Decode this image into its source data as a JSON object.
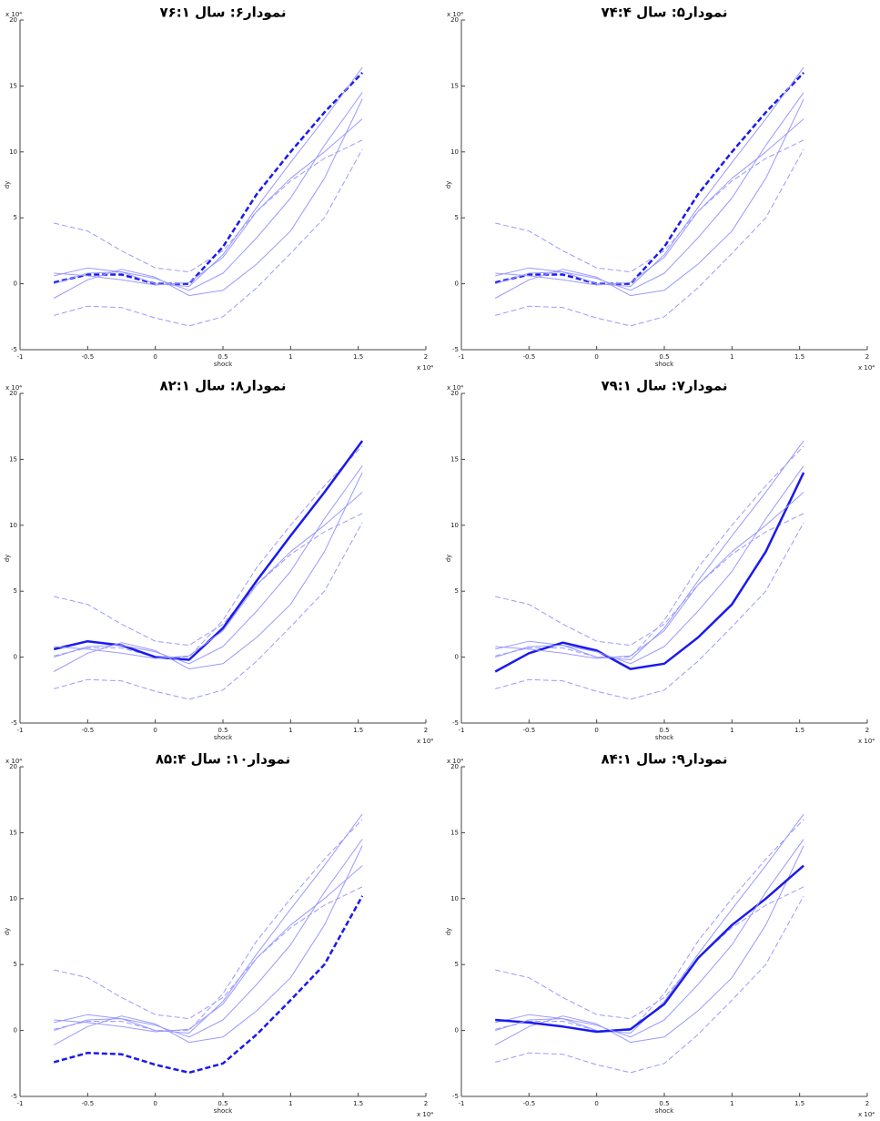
{
  "chart_data": [
    {
      "type": "line",
      "title": "نمودار۶: سال ۷۶:۱",
      "x_label": "shock",
      "y_label": "dy",
      "x_multiplier": "x 10⁴",
      "y_multiplier": "x 10⁴",
      "x": [
        -0.75,
        -0.5,
        -0.25,
        0,
        0.25,
        0.5,
        0.75,
        1,
        1.25,
        1.53
      ],
      "xlim": [
        -1,
        2
      ],
      "xticks": [
        -1,
        -0.5,
        0,
        0.5,
        1,
        1.5,
        2
      ],
      "ylim": [
        -5,
        20
      ],
      "yticks": [
        -5,
        0,
        5,
        10,
        15,
        20
      ],
      "series": [
        {
          "color": "#9a9aff",
          "dash": true,
          "width": 1,
          "values": [
            4.6,
            4.0,
            2.5,
            1.2,
            0.9,
            2.5,
            5.5,
            7.8,
            9.5,
            10.9
          ]
        },
        {
          "color": "#9a9aff",
          "dash": true,
          "width": 1,
          "values": [
            -2.4,
            -1.7,
            -1.8,
            -2.6,
            -3.2,
            -2.5,
            -0.3,
            2.3,
            5.0,
            10.2
          ]
        },
        {
          "color": "#1a1aee",
          "dash": true,
          "width": 2.5,
          "values": [
            0.1,
            0.7,
            0.7,
            0.0,
            0.0,
            2.8,
            6.8,
            10.0,
            13.0,
            16.0
          ]
        },
        {
          "color": "#9a9aff",
          "dash": false,
          "width": 1,
          "values": [
            0.6,
            1.2,
            0.9,
            0.0,
            -0.2,
            2.2,
            5.8,
            9.2,
            12.5,
            16.4
          ]
        },
        {
          "color": "#9a9aff",
          "dash": false,
          "width": 1,
          "values": [
            -1.1,
            0.3,
            1.1,
            0.5,
            -0.9,
            -0.5,
            1.5,
            4.0,
            8.0,
            14.0
          ]
        },
        {
          "color": "#9a9aff",
          "dash": false,
          "width": 1,
          "values": [
            0.8,
            0.6,
            0.3,
            -0.1,
            0.1,
            2.0,
            5.5,
            8.0,
            10.0,
            12.5
          ]
        },
        {
          "color": "#9a9aff",
          "dash": false,
          "width": 1,
          "values": [
            0.0,
            0.8,
            0.9,
            0.4,
            -0.5,
            0.8,
            3.5,
            6.5,
            10.5,
            14.5
          ]
        }
      ]
    },
    {
      "type": "line",
      "title": "نمودار۵: سال ۷۴:۴",
      "x_label": "shock",
      "y_label": "dy",
      "x_multiplier": "x 10⁴",
      "y_multiplier": "x 10⁴",
      "x": [
        -0.75,
        -0.5,
        -0.25,
        0,
        0.25,
        0.5,
        0.75,
        1,
        1.25,
        1.53
      ],
      "xlim": [
        -1,
        2
      ],
      "xticks": [
        -1,
        -0.5,
        0,
        0.5,
        1,
        1.5,
        2
      ],
      "ylim": [
        -5,
        20
      ],
      "yticks": [
        -5,
        0,
        5,
        10,
        15,
        20
      ],
      "series": [
        {
          "color": "#9a9aff",
          "dash": true,
          "width": 1,
          "values": [
            4.6,
            4.0,
            2.5,
            1.2,
            0.9,
            2.5,
            5.5,
            7.8,
            9.5,
            10.9
          ]
        },
        {
          "color": "#9a9aff",
          "dash": true,
          "width": 1,
          "values": [
            -2.4,
            -1.7,
            -1.8,
            -2.6,
            -3.2,
            -2.5,
            -0.3,
            2.3,
            5.0,
            10.2
          ]
        },
        {
          "color": "#1a1aee",
          "dash": true,
          "width": 2.5,
          "values": [
            0.1,
            0.7,
            0.7,
            0.0,
            0.0,
            2.8,
            6.8,
            10.0,
            13.0,
            16.0
          ]
        },
        {
          "color": "#9a9aff",
          "dash": false,
          "width": 1,
          "values": [
            0.6,
            1.2,
            0.9,
            0.0,
            -0.2,
            2.2,
            5.8,
            9.2,
            12.5,
            16.4
          ]
        },
        {
          "color": "#9a9aff",
          "dash": false,
          "width": 1,
          "values": [
            -1.1,
            0.3,
            1.1,
            0.5,
            -0.9,
            -0.5,
            1.5,
            4.0,
            8.0,
            14.0
          ]
        },
        {
          "color": "#9a9aff",
          "dash": false,
          "width": 1,
          "values": [
            0.8,
            0.6,
            0.3,
            -0.1,
            0.1,
            2.0,
            5.5,
            8.0,
            10.0,
            12.5
          ]
        },
        {
          "color": "#9a9aff",
          "dash": false,
          "width": 1,
          "values": [
            0.0,
            0.8,
            0.9,
            0.4,
            -0.5,
            0.8,
            3.5,
            6.5,
            10.5,
            14.5
          ]
        }
      ]
    },
    {
      "type": "line",
      "title": "نمودار۸: سال ۸۲:۱",
      "x_label": "shock",
      "y_label": "dy",
      "x_multiplier": "x 10⁴",
      "y_multiplier": "x 10⁴",
      "x": [
        -0.75,
        -0.5,
        -0.25,
        0,
        0.25,
        0.5,
        0.75,
        1,
        1.25,
        1.53
      ],
      "xlim": [
        -1,
        2
      ],
      "xticks": [
        -1,
        -0.5,
        0,
        0.5,
        1,
        1.5,
        2
      ],
      "ylim": [
        -5,
        20
      ],
      "yticks": [
        -5,
        0,
        5,
        10,
        15,
        20
      ],
      "series": [
        {
          "color": "#9a9aff",
          "dash": true,
          "width": 1,
          "values": [
            4.6,
            4.0,
            2.5,
            1.2,
            0.9,
            2.5,
            5.5,
            7.8,
            9.5,
            10.9
          ]
        },
        {
          "color": "#9a9aff",
          "dash": true,
          "width": 1,
          "values": [
            -2.4,
            -1.7,
            -1.8,
            -2.6,
            -3.2,
            -2.5,
            -0.3,
            2.3,
            5.0,
            10.2
          ]
        },
        {
          "color": "#9a9aff",
          "dash": true,
          "width": 1,
          "values": [
            0.1,
            0.7,
            0.7,
            0.0,
            0.0,
            2.8,
            6.8,
            10.0,
            13.0,
            16.0
          ]
        },
        {
          "color": "#1a1aee",
          "dash": false,
          "width": 2.5,
          "values": [
            0.6,
            1.2,
            0.9,
            0.0,
            -0.2,
            2.2,
            5.8,
            9.2,
            12.5,
            16.4
          ]
        },
        {
          "color": "#9a9aff",
          "dash": false,
          "width": 1,
          "values": [
            -1.1,
            0.3,
            1.1,
            0.5,
            -0.9,
            -0.5,
            1.5,
            4.0,
            8.0,
            14.0
          ]
        },
        {
          "color": "#9a9aff",
          "dash": false,
          "width": 1,
          "values": [
            0.8,
            0.6,
            0.3,
            -0.1,
            0.1,
            2.0,
            5.5,
            8.0,
            10.0,
            12.5
          ]
        },
        {
          "color": "#9a9aff",
          "dash": false,
          "width": 1,
          "values": [
            0.0,
            0.8,
            0.9,
            0.4,
            -0.5,
            0.8,
            3.5,
            6.5,
            10.5,
            14.5
          ]
        }
      ]
    },
    {
      "type": "line",
      "title": "نمودار۷: سال ۷۹:۱",
      "x_label": "shock",
      "y_label": "dy",
      "x_multiplier": "x 10⁴",
      "y_multiplier": "x 10⁴",
      "x": [
        -0.75,
        -0.5,
        -0.25,
        0,
        0.25,
        0.5,
        0.75,
        1,
        1.25,
        1.53
      ],
      "xlim": [
        -1,
        2
      ],
      "xticks": [
        -1,
        -0.5,
        0,
        0.5,
        1,
        1.5,
        2
      ],
      "ylim": [
        -5,
        20
      ],
      "yticks": [
        -5,
        0,
        5,
        10,
        15,
        20
      ],
      "series": [
        {
          "color": "#9a9aff",
          "dash": true,
          "width": 1,
          "values": [
            4.6,
            4.0,
            2.5,
            1.2,
            0.9,
            2.5,
            5.5,
            7.8,
            9.5,
            10.9
          ]
        },
        {
          "color": "#9a9aff",
          "dash": true,
          "width": 1,
          "values": [
            -2.4,
            -1.7,
            -1.8,
            -2.6,
            -3.2,
            -2.5,
            -0.3,
            2.3,
            5.0,
            10.2
          ]
        },
        {
          "color": "#9a9aff",
          "dash": true,
          "width": 1,
          "values": [
            0.1,
            0.7,
            0.7,
            0.0,
            0.0,
            2.8,
            6.8,
            10.0,
            13.0,
            16.0
          ]
        },
        {
          "color": "#9a9aff",
          "dash": false,
          "width": 1,
          "values": [
            0.6,
            1.2,
            0.9,
            0.0,
            -0.2,
            2.2,
            5.8,
            9.2,
            12.5,
            16.4
          ]
        },
        {
          "color": "#1a1aee",
          "dash": false,
          "width": 2.5,
          "values": [
            -1.1,
            0.3,
            1.1,
            0.5,
            -0.9,
            -0.5,
            1.5,
            4.0,
            8.0,
            14.0
          ]
        },
        {
          "color": "#9a9aff",
          "dash": false,
          "width": 1,
          "values": [
            0.8,
            0.6,
            0.3,
            -0.1,
            0.1,
            2.0,
            5.5,
            8.0,
            10.0,
            12.5
          ]
        },
        {
          "color": "#9a9aff",
          "dash": false,
          "width": 1,
          "values": [
            0.0,
            0.8,
            0.9,
            0.4,
            -0.5,
            0.8,
            3.5,
            6.5,
            10.5,
            14.5
          ]
        }
      ]
    },
    {
      "type": "line",
      "title": "نمودار۱۰: سال ۸۵:۴",
      "x_label": "shock",
      "y_label": "dy",
      "x_multiplier": "x 10⁴",
      "y_multiplier": "x 10⁴",
      "x": [
        -0.75,
        -0.5,
        -0.25,
        0,
        0.25,
        0.5,
        0.75,
        1,
        1.25,
        1.53
      ],
      "xlim": [
        -1,
        2
      ],
      "xticks": [
        -1,
        -0.5,
        0,
        0.5,
        1,
        1.5,
        2
      ],
      "ylim": [
        -5,
        20
      ],
      "yticks": [
        -5,
        0,
        5,
        10,
        15,
        20
      ],
      "series": [
        {
          "color": "#9a9aff",
          "dash": true,
          "width": 1,
          "values": [
            4.6,
            4.0,
            2.5,
            1.2,
            0.9,
            2.5,
            5.5,
            7.8,
            9.5,
            10.9
          ]
        },
        {
          "color": "#1a1aee",
          "dash": true,
          "width": 2.5,
          "values": [
            -2.4,
            -1.7,
            -1.8,
            -2.6,
            -3.2,
            -2.5,
            -0.3,
            2.3,
            5.0,
            10.2
          ]
        },
        {
          "color": "#9a9aff",
          "dash": true,
          "width": 1,
          "values": [
            0.1,
            0.7,
            0.7,
            0.0,
            0.0,
            2.8,
            6.8,
            10.0,
            13.0,
            16.0
          ]
        },
        {
          "color": "#9a9aff",
          "dash": false,
          "width": 1,
          "values": [
            0.6,
            1.2,
            0.9,
            0.0,
            -0.2,
            2.2,
            5.8,
            9.2,
            12.5,
            16.4
          ]
        },
        {
          "color": "#9a9aff",
          "dash": false,
          "width": 1,
          "values": [
            -1.1,
            0.3,
            1.1,
            0.5,
            -0.9,
            -0.5,
            1.5,
            4.0,
            8.0,
            14.0
          ]
        },
        {
          "color": "#9a9aff",
          "dash": false,
          "width": 1,
          "values": [
            0.8,
            0.6,
            0.3,
            -0.1,
            0.1,
            2.0,
            5.5,
            8.0,
            10.0,
            12.5
          ]
        },
        {
          "color": "#9a9aff",
          "dash": false,
          "width": 1,
          "values": [
            0.0,
            0.8,
            0.9,
            0.4,
            -0.5,
            0.8,
            3.5,
            6.5,
            10.5,
            14.5
          ]
        }
      ]
    },
    {
      "type": "line",
      "title": "نمودار۹: سال ۸۴:۱",
      "x_label": "shock",
      "y_label": "dy",
      "x_multiplier": "x 10⁴",
      "y_multiplier": "x 10⁴",
      "x": [
        -0.75,
        -0.5,
        -0.25,
        0,
        0.25,
        0.5,
        0.75,
        1,
        1.25,
        1.53
      ],
      "xlim": [
        -1,
        2
      ],
      "xticks": [
        -1,
        -0.5,
        0,
        0.5,
        1,
        1.5,
        2
      ],
      "ylim": [
        -5,
        20
      ],
      "yticks": [
        -5,
        0,
        5,
        10,
        15,
        20
      ],
      "series": [
        {
          "color": "#9a9aff",
          "dash": true,
          "width": 1,
          "values": [
            4.6,
            4.0,
            2.5,
            1.2,
            0.9,
            2.5,
            5.5,
            7.8,
            9.5,
            10.9
          ]
        },
        {
          "color": "#9a9aff",
          "dash": true,
          "width": 1,
          "values": [
            -2.4,
            -1.7,
            -1.8,
            -2.6,
            -3.2,
            -2.5,
            -0.3,
            2.3,
            5.0,
            10.2
          ]
        },
        {
          "color": "#9a9aff",
          "dash": true,
          "width": 1,
          "values": [
            0.1,
            0.7,
            0.7,
            0.0,
            0.0,
            2.8,
            6.8,
            10.0,
            13.0,
            16.0
          ]
        },
        {
          "color": "#9a9aff",
          "dash": false,
          "width": 1,
          "values": [
            0.6,
            1.2,
            0.9,
            0.0,
            -0.2,
            2.2,
            5.8,
            9.2,
            12.5,
            16.4
          ]
        },
        {
          "color": "#9a9aff",
          "dash": false,
          "width": 1,
          "values": [
            -1.1,
            0.3,
            1.1,
            0.5,
            -0.9,
            -0.5,
            1.5,
            4.0,
            8.0,
            14.0
          ]
        },
        {
          "color": "#1a1aee",
          "dash": false,
          "width": 2.5,
          "values": [
            0.8,
            0.6,
            0.3,
            -0.1,
            0.1,
            2.0,
            5.5,
            8.0,
            10.0,
            12.5
          ]
        },
        {
          "color": "#9a9aff",
          "dash": false,
          "width": 1,
          "values": [
            0.0,
            0.8,
            0.9,
            0.4,
            -0.5,
            0.8,
            3.5,
            6.5,
            10.5,
            14.5
          ]
        }
      ]
    }
  ]
}
